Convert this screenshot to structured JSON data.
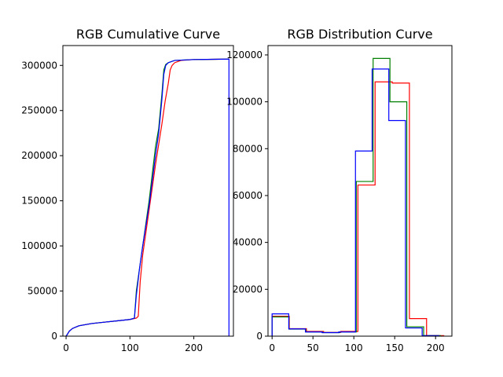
{
  "chart_data": [
    {
      "type": "line",
      "title": "RGB Cumulative Curve",
      "xlabel": "",
      "ylabel": "",
      "xlim": [
        -5,
        262
      ],
      "ylim": [
        0,
        322000
      ],
      "xticks": [
        0,
        100,
        200
      ],
      "yticks": [
        0,
        50000,
        100000,
        150000,
        200000,
        250000,
        300000
      ],
      "grid": false,
      "series": [
        {
          "color": "#ff0000",
          "x": [
            0,
            2,
            5,
            10,
            20,
            40,
            60,
            80,
            100,
            110,
            113,
            116,
            120,
            130,
            140,
            150,
            155,
            160,
            163,
            166,
            170,
            180,
            200,
            255
          ],
          "y": [
            0,
            2000,
            5500,
            8500,
            11500,
            14000,
            15500,
            17000,
            18500,
            20000,
            22000,
            60000,
            90000,
            140000,
            190000,
            235000,
            260000,
            280000,
            295000,
            300000,
            303000,
            305500,
            306500,
            307000
          ]
        },
        {
          "color": "#008000",
          "x": [
            0,
            2,
            5,
            10,
            20,
            40,
            60,
            80,
            100,
            107,
            110,
            115,
            120,
            130,
            140,
            145,
            150,
            153,
            156,
            160,
            170,
            200,
            255
          ],
          "y": [
            0,
            2000,
            5500,
            8500,
            11500,
            14000,
            15500,
            17000,
            18500,
            20000,
            50000,
            75000,
            100000,
            150000,
            210000,
            230000,
            268000,
            295000,
            301000,
            303000,
            305500,
            306500,
            307000
          ]
        },
        {
          "color": "#0000ff",
          "x": [
            0,
            2,
            5,
            10,
            20,
            40,
            60,
            80,
            100,
            107,
            110,
            115,
            120,
            130,
            140,
            145,
            150,
            153,
            156,
            160,
            170,
            200,
            254,
            255,
            255
          ],
          "y": [
            0,
            2000,
            5500,
            8500,
            11500,
            14000,
            15500,
            17000,
            18500,
            20000,
            45000,
            75000,
            100000,
            145000,
            200000,
            225000,
            262000,
            290000,
            300000,
            303000,
            305500,
            306500,
            307000,
            307000,
            0
          ]
        }
      ]
    },
    {
      "type": "step",
      "title": "RGB Distribution Curve",
      "xlabel": "",
      "ylabel": "",
      "xlim": [
        -5,
        220
      ],
      "ylim": [
        0,
        124000
      ],
      "xticks": [
        0,
        50,
        100,
        150,
        200
      ],
      "yticks": [
        0,
        20000,
        40000,
        60000,
        80000,
        100000,
        120000
      ],
      "grid": false,
      "series": [
        {
          "color": "#ff0000",
          "bin_edges": [
            0,
            21,
            42,
            63,
            84,
            105,
            126,
            147,
            168,
            189,
            210
          ],
          "values": [
            8500,
            3200,
            2000,
            1600,
            2000,
            64500,
            108500,
            108000,
            7500,
            200
          ]
        },
        {
          "color": "#008000",
          "bin_edges": [
            0,
            20.6,
            41.2,
            61.8,
            82.4,
            103,
            123.6,
            144.2,
            164.8,
            185.4,
            206
          ],
          "values": [
            8200,
            3000,
            1800,
            1500,
            1800,
            66000,
            118500,
            100000,
            4000,
            200
          ]
        },
        {
          "color": "#0000ff",
          "bin_edges": [
            0,
            20.4,
            40.8,
            61.2,
            81.6,
            102,
            122.4,
            142.8,
            163.2,
            183.6,
            204
          ],
          "values": [
            9500,
            3100,
            1800,
            1500,
            1800,
            79000,
            114000,
            92000,
            3500,
            200
          ]
        }
      ]
    }
  ]
}
